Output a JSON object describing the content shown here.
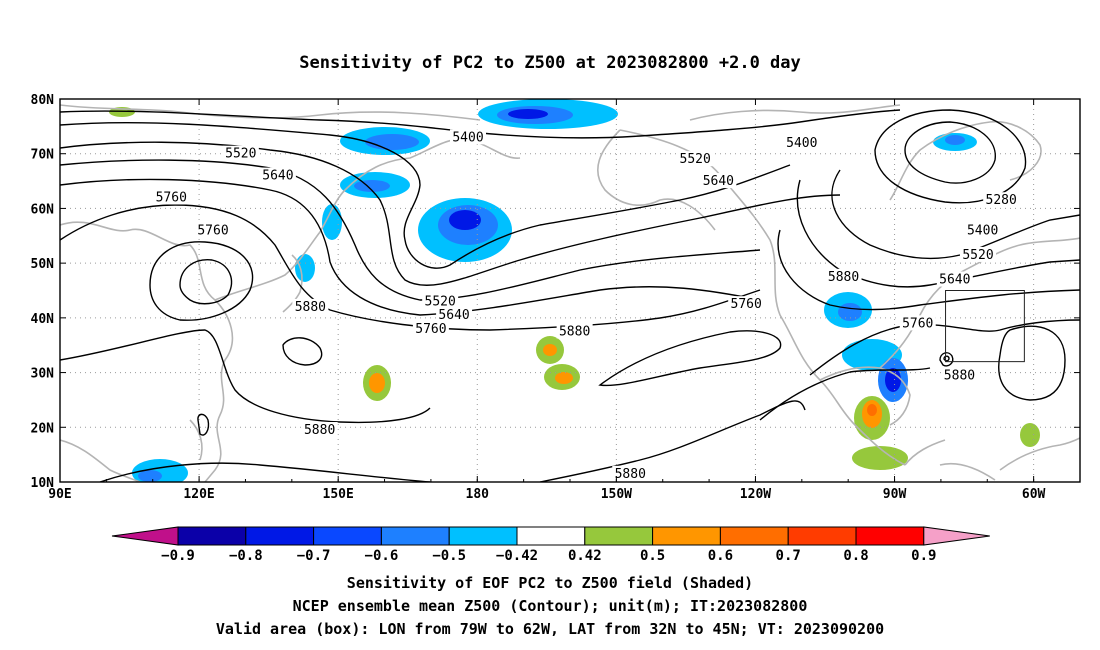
{
  "title": "Sensitivity of PC2 to Z500 at 2023082800 +2.0 day",
  "map": {
    "lon_range": [
      90,
      310
    ],
    "lat_range": [
      10,
      80
    ],
    "x_ticks": [
      {
        "lon": 90,
        "label": "90E"
      },
      {
        "lon": 120,
        "label": "120E"
      },
      {
        "lon": 150,
        "label": "150E"
      },
      {
        "lon": 180,
        "label": "180"
      },
      {
        "lon": 210,
        "label": "150W"
      },
      {
        "lon": 240,
        "label": "120W"
      },
      {
        "lon": 270,
        "label": "90W"
      },
      {
        "lon": 300,
        "label": "60W"
      }
    ],
    "y_ticks": [
      {
        "lat": 10,
        "label": "10N"
      },
      {
        "lat": 20,
        "label": "20N"
      },
      {
        "lat": 30,
        "label": "30N"
      },
      {
        "lat": 40,
        "label": "40N"
      },
      {
        "lat": 50,
        "label": "50N"
      },
      {
        "lat": 60,
        "label": "60N"
      },
      {
        "lat": 70,
        "label": "70N"
      },
      {
        "lat": 80,
        "label": "80N"
      }
    ],
    "grid": true,
    "valid_box": {
      "lon_min": 281,
      "lon_max": 298,
      "lat_min": 32,
      "lat_max": 45
    },
    "contour_labels": [
      {
        "text": "5400",
        "lon": 178,
        "lat": 73
      },
      {
        "text": "5520",
        "lon": 129,
        "lat": 70
      },
      {
        "text": "5640",
        "lon": 137,
        "lat": 66
      },
      {
        "text": "5760",
        "lon": 114,
        "lat": 62
      },
      {
        "text": "5760",
        "lon": 123,
        "lat": 56
      },
      {
        "text": "5880",
        "lon": 144,
        "lat": 42
      },
      {
        "text": "5520",
        "lon": 172,
        "lat": 43
      },
      {
        "text": "5640",
        "lon": 175,
        "lat": 40.5
      },
      {
        "text": "5760",
        "lon": 170,
        "lat": 38
      },
      {
        "text": "5880",
        "lon": 201,
        "lat": 37.5
      },
      {
        "text": "5880",
        "lon": 146,
        "lat": 19.5
      },
      {
        "text": "5880",
        "lon": 213,
        "lat": 11.5
      },
      {
        "text": "5400",
        "lon": 250,
        "lat": 72
      },
      {
        "text": "5520",
        "lon": 227,
        "lat": 69
      },
      {
        "text": "5640",
        "lon": 232,
        "lat": 65
      },
      {
        "text": "5880",
        "lon": 259,
        "lat": 47.5
      },
      {
        "text": "5760",
        "lon": 238,
        "lat": 42.5
      },
      {
        "text": "5760",
        "lon": 275,
        "lat": 39
      },
      {
        "text": "5280",
        "lon": 293,
        "lat": 61.5
      },
      {
        "text": "5400",
        "lon": 289,
        "lat": 56
      },
      {
        "text": "5520",
        "lon": 288,
        "lat": 51.5
      },
      {
        "text": "5640",
        "lon": 283,
        "lat": 47
      },
      {
        "text": "5880",
        "lon": 284,
        "lat": 29.5
      }
    ]
  },
  "colorbar": {
    "low_cap_color": "#c0108a",
    "high_cap_color": "#f5a0c8",
    "colors": [
      "#0b00a8",
      "#0018e6",
      "#0a48ff",
      "#1e80ff",
      "#00c0ff",
      "#ffffff",
      "#96c83c",
      "#ff9600",
      "#ff6e00",
      "#ff3c00",
      "#ff0000"
    ],
    "labels": [
      "−0.9",
      "−0.8",
      "−0.7",
      "−0.6",
      "−0.5",
      "−0.42",
      "0.42",
      "0.5",
      "0.6",
      "0.7",
      "0.8",
      "0.9"
    ]
  },
  "footer": {
    "line1": "Sensitivity of EOF PC2 to Z500 field (Shaded)",
    "line2": "NCEP ensemble mean Z500 (Contour); unit(m); IT:2023082800",
    "line3": "Valid area (box): LON from 79W to 62W, LAT from 32N to 45N; VT: 2023090200"
  }
}
